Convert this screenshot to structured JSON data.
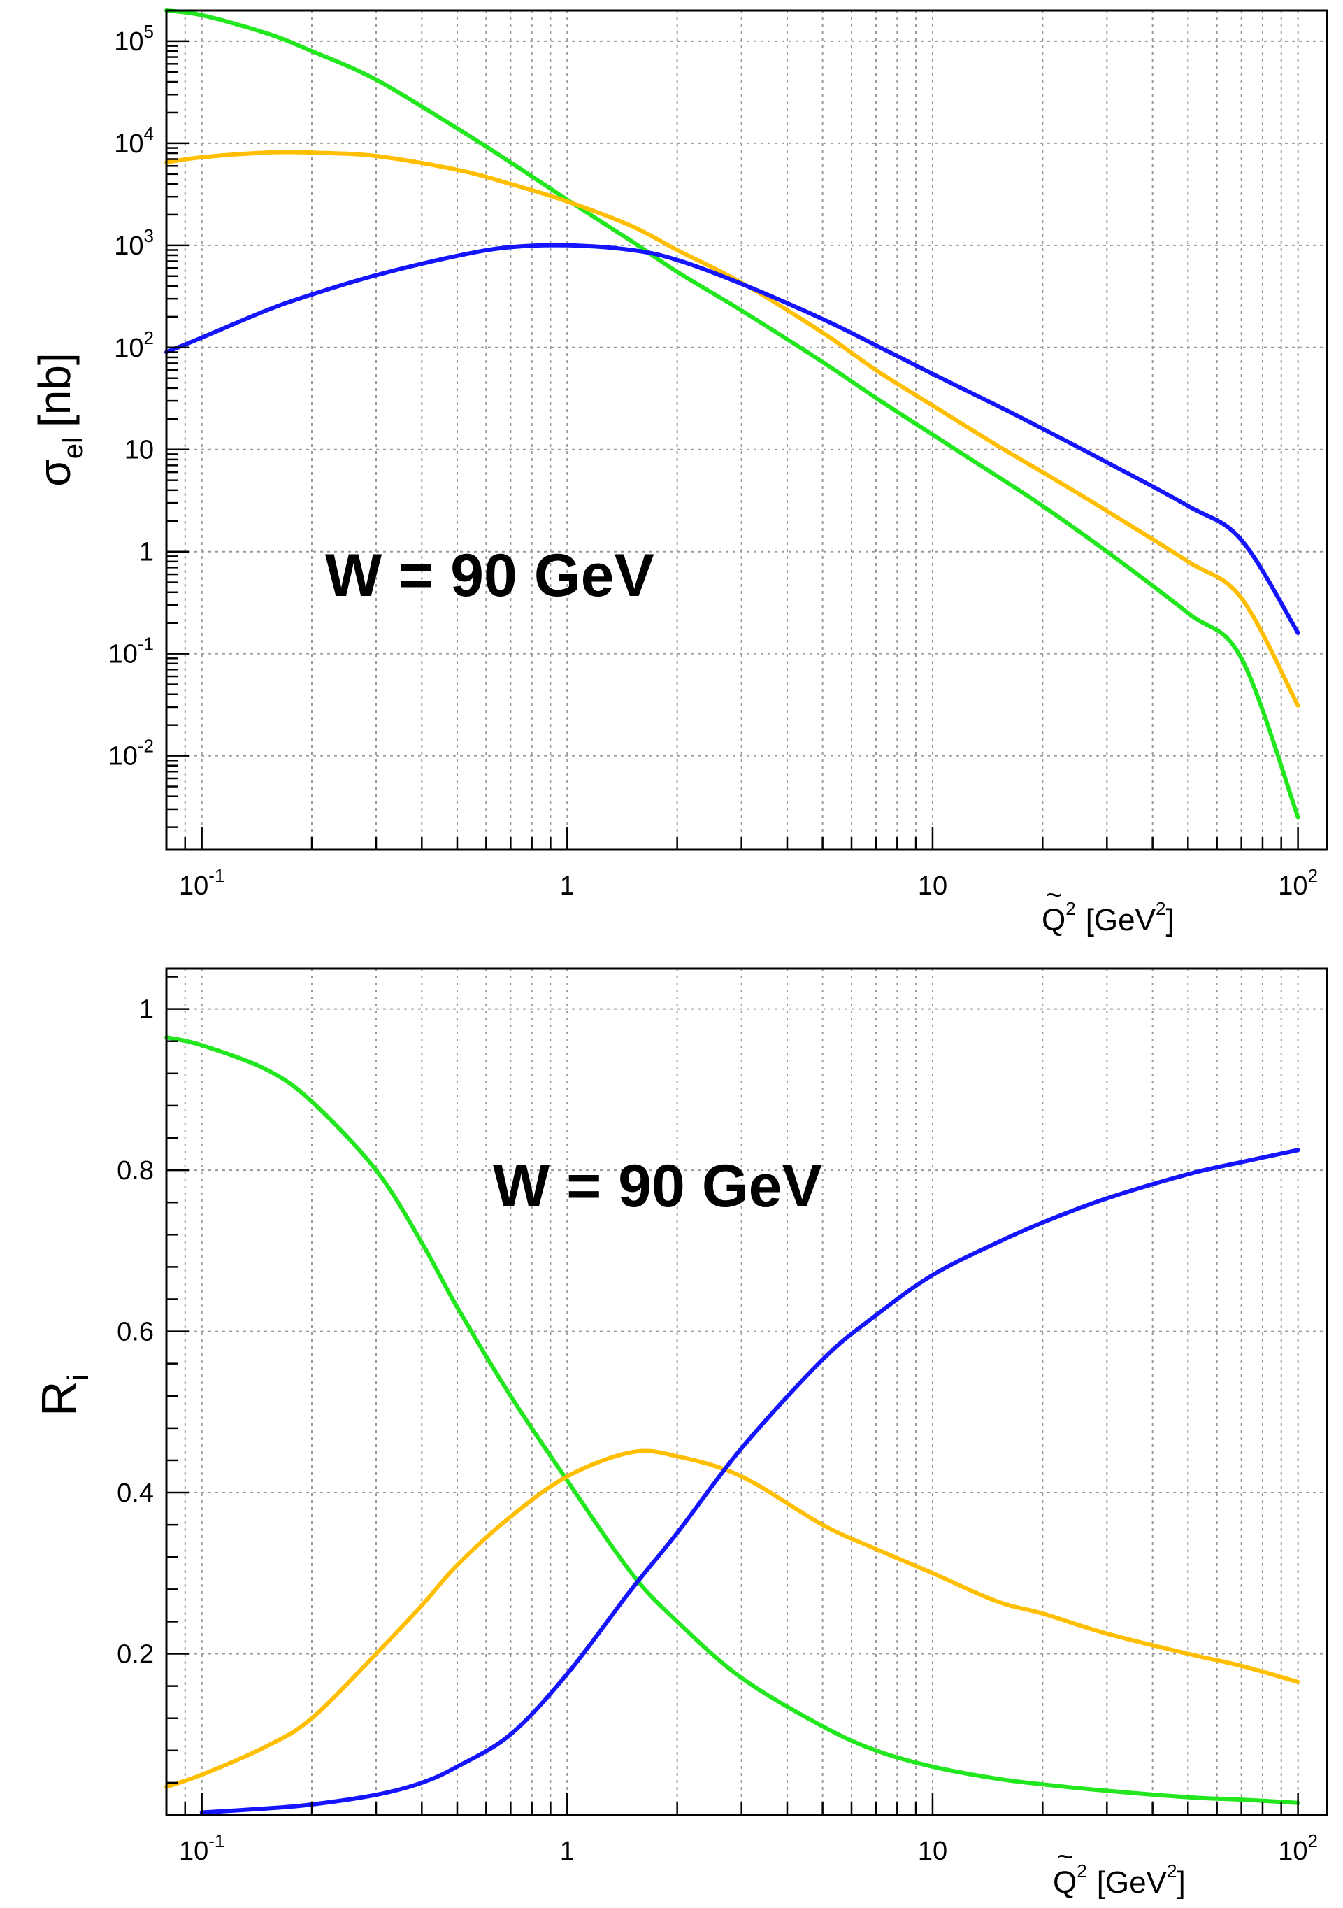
{
  "chart_data": [
    {
      "type": "line",
      "id": "top",
      "xscale": "log",
      "yscale": "log",
      "xlim": [
        0.08,
        120
      ],
      "ylim": [
        0.0012,
        200000
      ],
      "ylabel_main": "σ",
      "ylabel_sub": "el",
      "ylabel_rest": "[nb]",
      "xlabel_main": "Q",
      "xlabel_tilde": "~",
      "xlabel_sup": "2",
      "xlabel_unit_left": "[GeV",
      "xlabel_unit_sup": "2",
      "xlabel_unit_right": "]",
      "annotation": "W = 90 GeV",
      "x_ticks": [
        {
          "value": 0.1,
          "base": "10",
          "exp": "-1"
        },
        {
          "value": 1,
          "base": "1",
          "exp": ""
        },
        {
          "value": 10,
          "base": "10",
          "exp": ""
        },
        {
          "value": 100,
          "base": "10",
          "exp": "2"
        }
      ],
      "y_ticks": [
        {
          "value": 0.01,
          "base": "10",
          "exp": "-2"
        },
        {
          "value": 0.1,
          "base": "10",
          "exp": "-1"
        },
        {
          "value": 1,
          "base": "1",
          "exp": ""
        },
        {
          "value": 10,
          "base": "10",
          "exp": ""
        },
        {
          "value": 100,
          "base": "10",
          "exp": "2"
        },
        {
          "value": 1000,
          "base": "10",
          "exp": "3"
        },
        {
          "value": 10000,
          "base": "10",
          "exp": "4"
        },
        {
          "value": 100000,
          "base": "10",
          "exp": "5"
        }
      ],
      "series": [
        {
          "name": "green",
          "color": "#22e61e",
          "x": [
            0.08,
            0.1,
            0.15,
            0.2,
            0.3,
            0.5,
            0.7,
            1,
            1.5,
            2,
            3,
            5,
            7,
            10,
            15,
            20,
            30,
            50,
            70,
            100
          ],
          "y": [
            200000,
            180000,
            120000,
            80000,
            42000,
            14000,
            6500,
            2800,
            1100,
            550,
            230,
            72,
            32,
            14,
            5.5,
            2.8,
            1.0,
            0.25,
            0.09,
            0.0025
          ]
        },
        {
          "name": "orange",
          "color": "#ffbf00",
          "x": [
            0.08,
            0.1,
            0.15,
            0.2,
            0.3,
            0.5,
            0.7,
            1,
            1.5,
            2,
            3,
            5,
            7,
            10,
            15,
            20,
            30,
            50,
            70,
            100
          ],
          "y": [
            6500,
            7300,
            8100,
            8100,
            7500,
            5500,
            4000,
            2700,
            1550,
            900,
            430,
            140,
            60,
            27,
            11,
            6,
            2.5,
            0.8,
            0.35,
            0.031
          ]
        },
        {
          "name": "blue",
          "color": "#1414ff",
          "x": [
            0.08,
            0.1,
            0.15,
            0.2,
            0.3,
            0.5,
            0.7,
            1,
            1.5,
            2,
            3,
            5,
            7,
            10,
            15,
            20,
            30,
            50,
            70,
            100
          ],
          "y": [
            90,
            125,
            230,
            330,
            510,
            790,
            960,
            1000,
            900,
            720,
            420,
            190,
            105,
            55,
            27,
            16,
            7.5,
            2.8,
            1.3,
            0.16
          ]
        }
      ]
    },
    {
      "type": "line",
      "id": "bottom",
      "xscale": "log",
      "yscale": "linear",
      "xlim": [
        0.08,
        120
      ],
      "ylim": [
        0,
        1.05
      ],
      "ylabel_main": "R",
      "ylabel_sub": "i",
      "xlabel_main": "Q",
      "xlabel_tilde": "~",
      "xlabel_sup": "2",
      "xlabel_unit_left": "[GeV",
      "xlabel_unit_sup": "2",
      "xlabel_unit_right": "]",
      "annotation": "W = 90 GeV",
      "x_ticks": [
        {
          "value": 0.1,
          "base": "10",
          "exp": "-1"
        },
        {
          "value": 1,
          "base": "1",
          "exp": ""
        },
        {
          "value": 10,
          "base": "10",
          "exp": ""
        },
        {
          "value": 100,
          "base": "10",
          "exp": "2"
        }
      ],
      "y_ticks": [
        {
          "value": 0.2,
          "label": "0.2"
        },
        {
          "value": 0.4,
          "label": "0.4"
        },
        {
          "value": 0.6,
          "label": "0.6"
        },
        {
          "value": 0.8,
          "label": "0.8"
        },
        {
          "value": 1,
          "label": "1"
        }
      ],
      "series": [
        {
          "name": "green",
          "color": "#22e61e",
          "x": [
            0.08,
            0.1,
            0.15,
            0.2,
            0.3,
            0.4,
            0.5,
            0.7,
            1,
            1.5,
            2,
            3,
            5,
            7,
            10,
            15,
            20,
            30,
            50,
            70,
            100
          ],
          "y": [
            0.965,
            0.955,
            0.925,
            0.885,
            0.8,
            0.71,
            0.63,
            0.52,
            0.415,
            0.3,
            0.24,
            0.17,
            0.11,
            0.08,
            0.06,
            0.045,
            0.038,
            0.03,
            0.022,
            0.019,
            0.015
          ]
        },
        {
          "name": "orange",
          "color": "#ffbf00",
          "x": [
            0.08,
            0.1,
            0.15,
            0.2,
            0.3,
            0.4,
            0.5,
            0.7,
            1,
            1.5,
            2,
            3,
            5,
            7,
            10,
            15,
            20,
            30,
            50,
            70,
            100
          ],
          "y": [
            0.035,
            0.05,
            0.085,
            0.12,
            0.2,
            0.26,
            0.31,
            0.37,
            0.42,
            0.45,
            0.445,
            0.42,
            0.36,
            0.33,
            0.3,
            0.265,
            0.25,
            0.225,
            0.2,
            0.185,
            0.165
          ]
        },
        {
          "name": "blue",
          "color": "#1414ff",
          "x": [
            0.1,
            0.15,
            0.2,
            0.3,
            0.4,
            0.5,
            0.7,
            1,
            1.5,
            2,
            3,
            5,
            7,
            10,
            15,
            20,
            30,
            50,
            70,
            100
          ],
          "y": [
            0.003,
            0.008,
            0.013,
            0.025,
            0.04,
            0.06,
            0.1,
            0.175,
            0.28,
            0.35,
            0.455,
            0.565,
            0.62,
            0.67,
            0.71,
            0.735,
            0.765,
            0.795,
            0.81,
            0.825
          ]
        }
      ]
    }
  ]
}
